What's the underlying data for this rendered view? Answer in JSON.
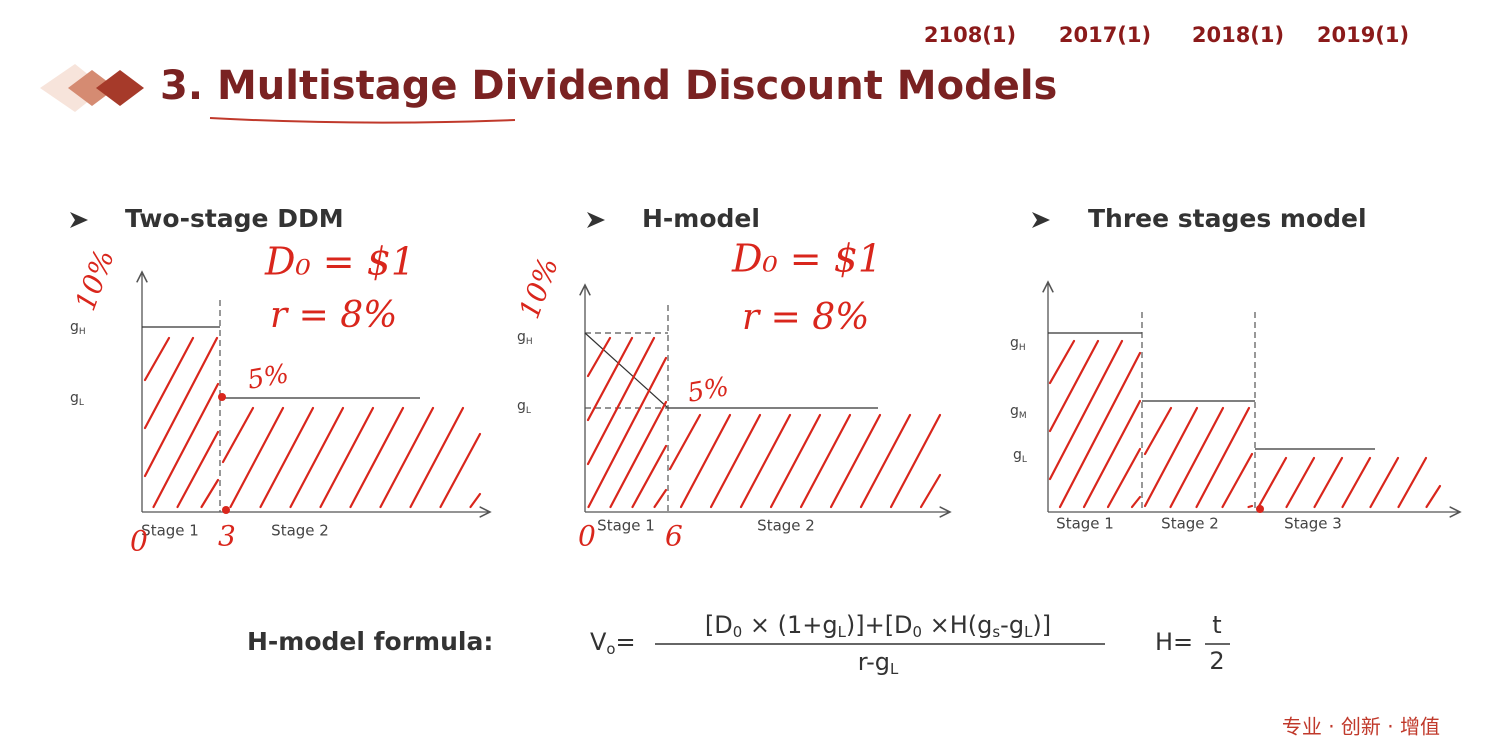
{
  "header": {
    "tags": [
      "2108(1)",
      "2017(1)",
      "2018(1)",
      "2019(1)"
    ],
    "title": "3. Multistage Dividend Discount Models"
  },
  "panels": [
    {
      "heading": "Two-stage DDM",
      "y_labels": [
        {
          "text": "g",
          "sub": "H"
        },
        {
          "text": "g",
          "sub": "L"
        }
      ],
      "x_labels": [
        "Stage 1",
        "Stage 2"
      ]
    },
    {
      "heading": "H-model",
      "y_labels": [
        {
          "text": "g",
          "sub": "H"
        },
        {
          "text": "g",
          "sub": "L"
        }
      ],
      "x_labels": [
        "Stage 1",
        "Stage 2"
      ]
    },
    {
      "heading": "Three stages model",
      "y_labels": [
        {
          "text": "g",
          "sub": "H"
        },
        {
          "text": "g",
          "sub": "M"
        },
        {
          "text": "g",
          "sub": "L"
        }
      ],
      "x_labels": [
        "Stage 1",
        "Stage 2",
        "Stage 3"
      ]
    }
  ],
  "annotations": [
    "D₀ = $1",
    "r = 8%",
    "10%",
    "5%",
    "0",
    "3",
    "D₀ = $1",
    "r = 8%",
    "10%",
    "5%",
    "0",
    "6"
  ],
  "formula": {
    "label": "H-model formula:",
    "lhs": [
      {
        "text": "V"
      },
      {
        "sub": "o"
      },
      {
        "text": "="
      }
    ],
    "numerator": [
      {
        "text": "[D"
      },
      {
        "sub": "0"
      },
      {
        "text": " × (1+g"
      },
      {
        "sub": "L"
      },
      {
        "text": ")]+[D"
      },
      {
        "sub": "0"
      },
      {
        "text": " ×H(g"
      },
      {
        "sub": "s"
      },
      {
        "text": "-g"
      },
      {
        "sub": "L"
      },
      {
        "text": ")]"
      }
    ],
    "denominator": [
      {
        "text": "r-g"
      },
      {
        "sub": "L"
      }
    ],
    "h_lhs": "H=",
    "h_num": "t",
    "h_den": "2"
  },
  "footer": "专业 · 创新 · 增值"
}
